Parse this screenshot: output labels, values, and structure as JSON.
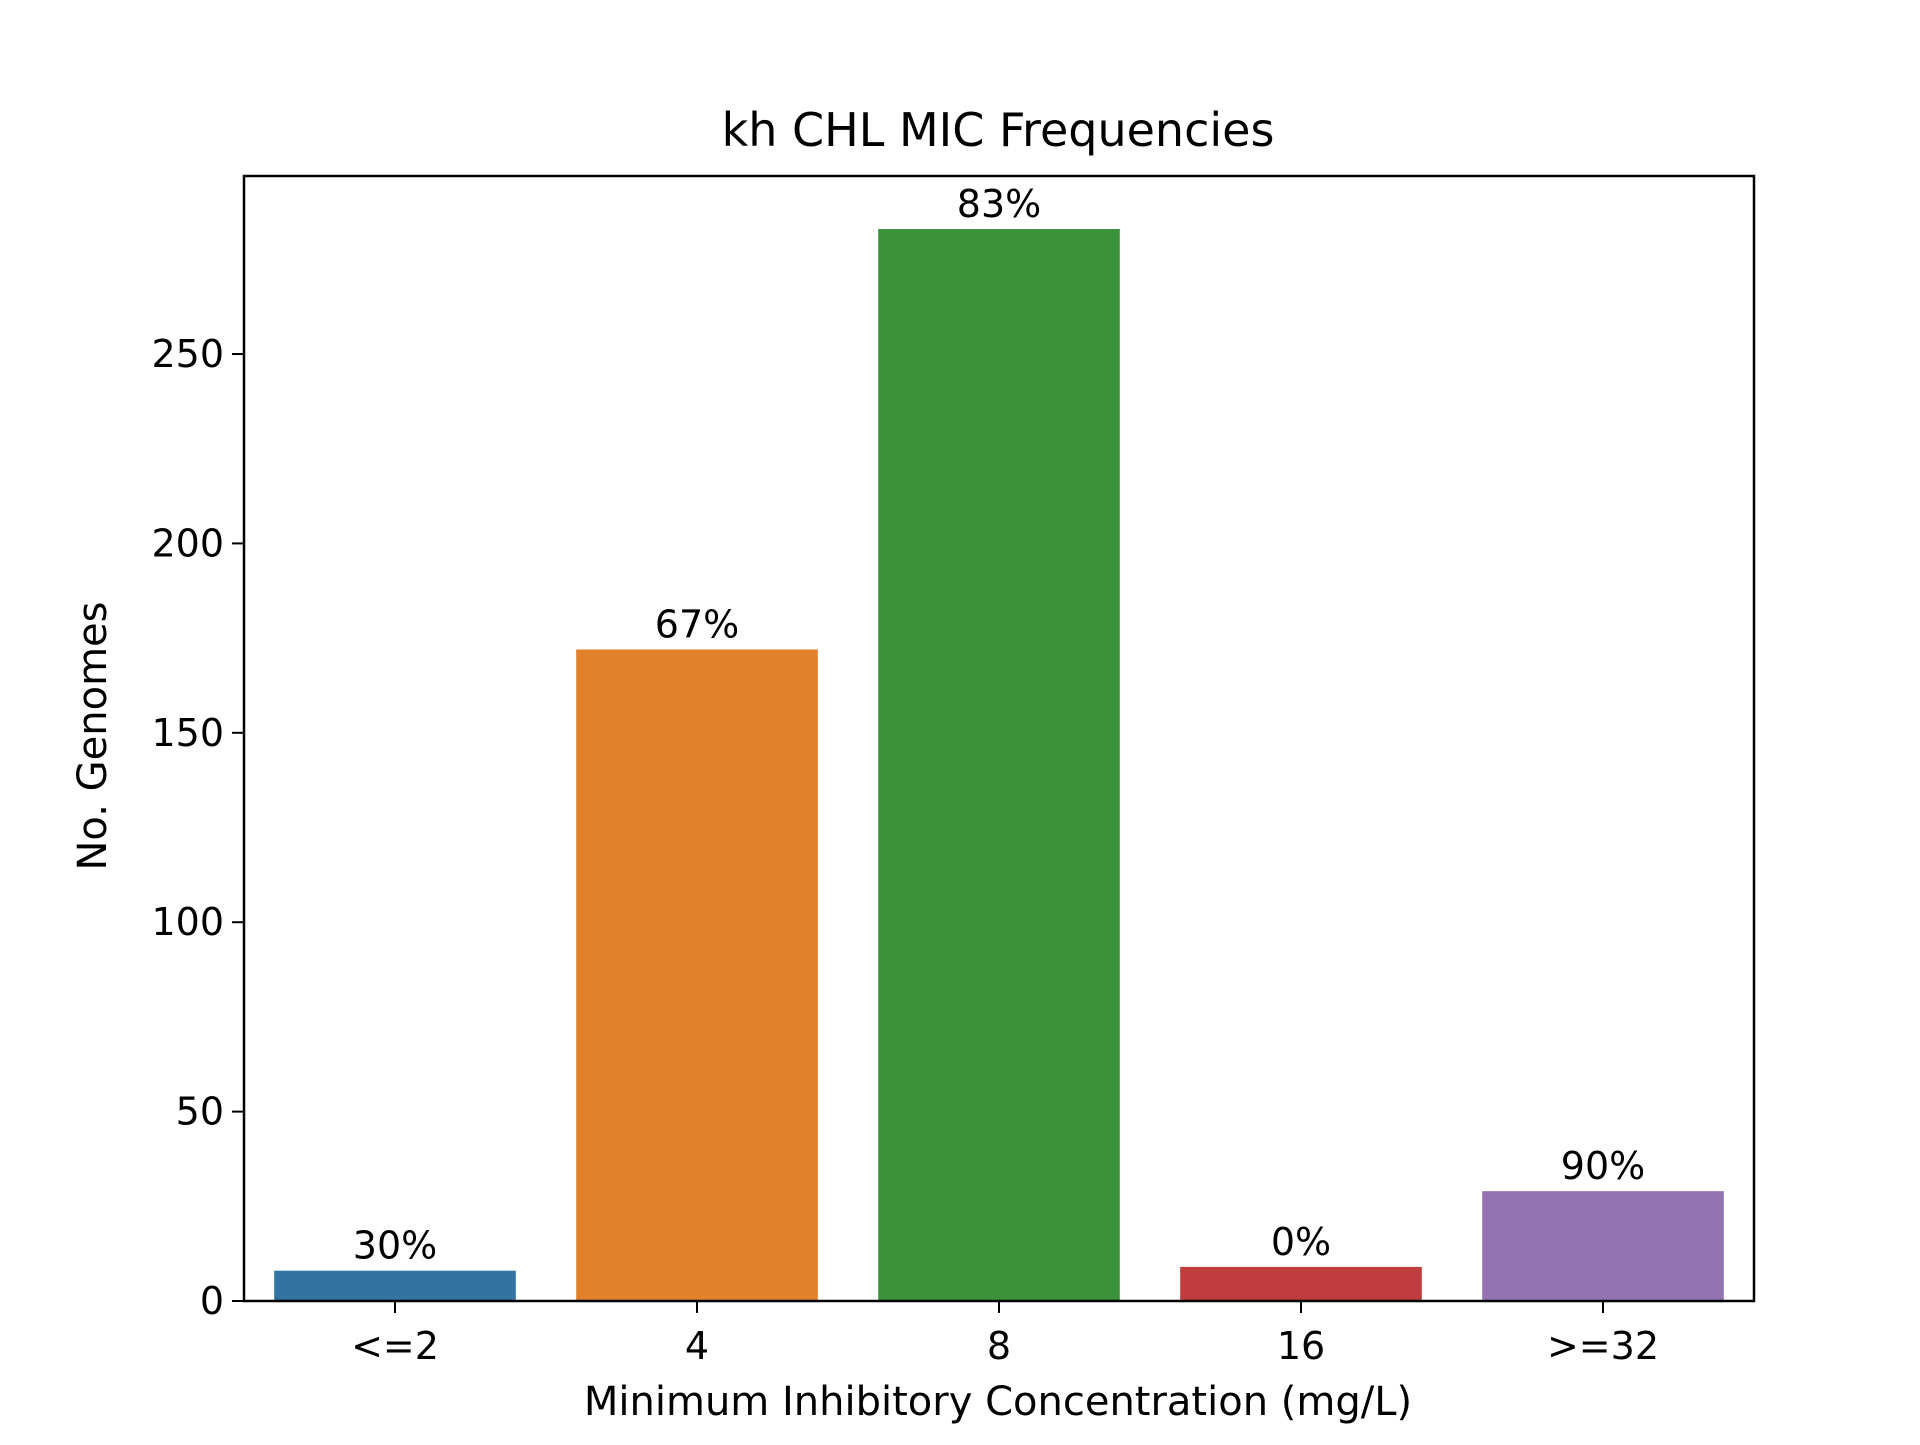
{
  "chart_data": {
    "type": "bar",
    "title": "kh CHL MIC Frequencies",
    "xlabel": "Minimum Inhibitory Concentration (mg/L)",
    "ylabel": "No. Genomes",
    "categories": [
      "<=2",
      "4",
      "8",
      "16",
      ">=32"
    ],
    "values": [
      8,
      172,
      283,
      9,
      29
    ],
    "bar_labels": [
      "30%",
      "67%",
      "83%",
      "0%",
      "90%"
    ],
    "colors": [
      "#3274a1",
      "#e1812c",
      "#3a923a",
      "#c03d3e",
      "#9372b2"
    ],
    "ylim": [
      0,
      297
    ],
    "yticks": [
      0,
      50,
      100,
      150,
      200,
      250
    ],
    "grid": false,
    "legend": "none"
  }
}
